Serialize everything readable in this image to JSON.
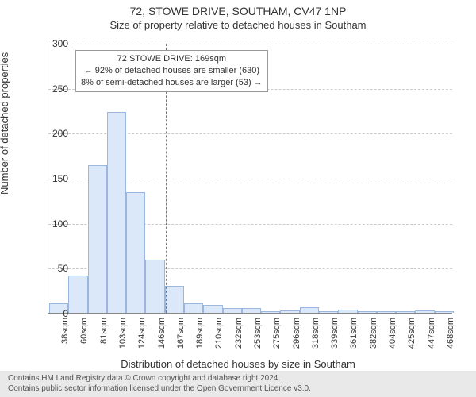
{
  "title": "72, STOWE DRIVE, SOUTHAM, CV47 1NP",
  "subtitle": "Size of property relative to detached houses in Southam",
  "xlabel": "Distribution of detached houses by size in Southam",
  "ylabel": "Number of detached properties",
  "footer_line1": "Contains HM Land Registry data © Crown copyright and database right 2024.",
  "footer_line2": "Contains public sector information licensed under the Open Government Licence v3.0.",
  "annotation": {
    "line1": "72 STOWE DRIVE: 169sqm",
    "line2": "← 92% of detached houses are smaller (630)",
    "line3": "8% of semi-detached houses are larger (53) →"
  },
  "chart": {
    "type": "histogram",
    "ylim": [
      0,
      300
    ],
    "ytick_step": 50,
    "xcategories": [
      "38sqm",
      "60sqm",
      "81sqm",
      "103sqm",
      "124sqm",
      "146sqm",
      "167sqm",
      "189sqm",
      "210sqm",
      "232sqm",
      "253sqm",
      "275sqm",
      "296sqm",
      "318sqm",
      "339sqm",
      "361sqm",
      "382sqm",
      "404sqm",
      "425sqm",
      "447sqm",
      "468sqm"
    ],
    "values": [
      10,
      41,
      163,
      222,
      133,
      58,
      29,
      10,
      8,
      4,
      4,
      1,
      2,
      5,
      1,
      3,
      1,
      1,
      1,
      2,
      1
    ],
    "bar_fill": "#dbe8f9",
    "bar_stroke": "#9ab7e0",
    "grid_color": "#cccccc",
    "axis_color": "#888888",
    "background_color": "#ffffff",
    "reference_line": {
      "x_index_after": 6,
      "color": "#d9534f"
    },
    "title_fontsize": 14,
    "subtitle_fontsize": 13,
    "label_fontsize": 13,
    "tick_fontsize": 12
  }
}
